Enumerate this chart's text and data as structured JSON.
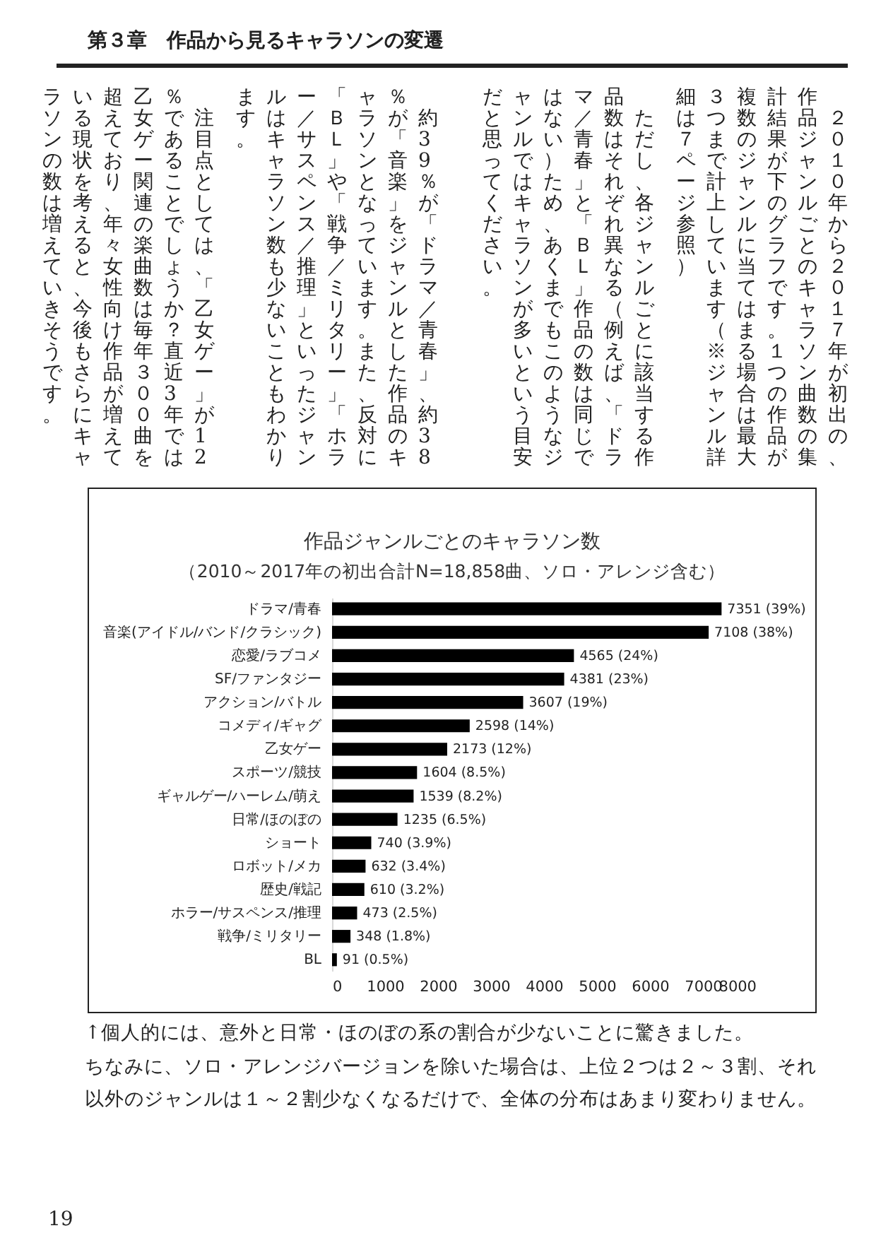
{
  "chart_data": {
    "type": "bar",
    "orientation": "horizontal",
    "title": "作品ジャンルごとのキャラソン数",
    "subtitle": "（2010～2017年の初出合計N=18,858曲、ソロ・アレンジ含む）",
    "categories": [
      "ドラマ/青春",
      "音楽(アイドル/バンド/クラシック)",
      "恋愛/ラブコメ",
      "SF/ファンタジー",
      "アクション/バトル",
      "コメディ/ギャグ",
      "乙女ゲー",
      "スポーツ/競技",
      "ギャルゲー/ハーレム/萌え",
      "日常/ほのぼの",
      "ショート",
      "ロボット/メカ",
      "歴史/戦記",
      "ホラー/サスペンス/推理",
      "戦争/ミリタリー",
      "BL"
    ],
    "values": [
      7351,
      7108,
      4565,
      4381,
      3607,
      2598,
      2173,
      1604,
      1539,
      1235,
      740,
      632,
      610,
      473,
      348,
      91
    ],
    "value_labels": [
      "7351 (39%)",
      "7108 (38%)",
      "4565 (24%)",
      "4381 (23%)",
      "3607 (19%)",
      "2598 (14%)",
      "2173 (12%)",
      "1604 (8.5%)",
      "1539 (8.2%)",
      "1235 (6.5%)",
      "740 (3.9%)",
      "632 (3.4%)",
      "610 (3.2%)",
      "473 (2.5%)",
      "348 (1.8%)",
      "91 (0.5%)"
    ],
    "color": "#000000",
    "xlim": [
      0,
      8000
    ],
    "xticks": [
      0,
      1000,
      2000,
      3000,
      4000,
      5000,
      6000,
      7000,
      8000
    ],
    "grid": false,
    "annotations": [
      "第３章　作品から見るキャラソンの変遷",
      "２０１０年から２０１７年が初出の、作品ジャンルごとのキャラソン曲数の集計結果が下のグラフです。１つの作品が複数のジャンルに当てはまる場合は最大３つまで計上しています（※ジャンル詳細は７ページ参照）",
      "ただし、各ジャンルごとに該当する作品数はそれぞれ異なる（例えば、「ドラマ／青春」と「ＢＬ」作品の数は同じではない）ため、あくまでもこのようなジャンルではキャラソンが多いという目安だと思ってください。",
      "約39％が「ドラマ／青春」、約38％が「音楽」をジャンルとした作品のキャラソンとなっています。また、反対に「ＢＬ」や「戦争／ミリタリー」「ホラー／サスペンス／推理」といったジャンルはキャラソン数も少ないこともわかります。",
      "注目点としては、「乙女ゲー」が12％であることでしょうか？直近3年では乙女ゲー関連の楽曲数は毎年３００曲を超えており、年々女性向け作品が増えている現状を考えると、今後もさらにキャラソンの数は増えていきそうです。",
      "↑個人的には、意外と日常・ほのぼの系の割合が少ないことに驚きました。",
      "ちなみに、ソロ・アレンジバージョンを除いた場合は、上位２つは２～３割、それ以外のジャンルは１～２割少なくなるだけで、全体の分布はあまり変わりません。",
      "19"
    ]
  }
}
